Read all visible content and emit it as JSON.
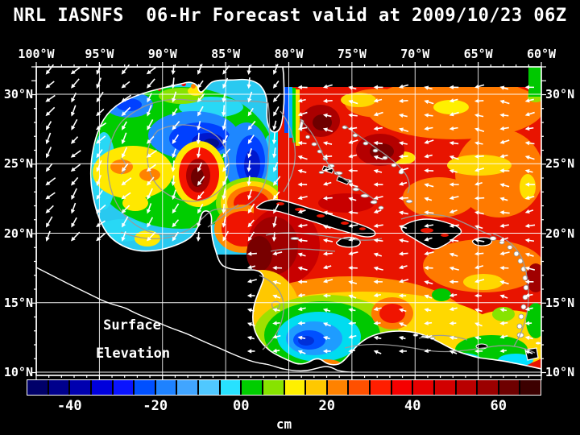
{
  "title": "NRL IASNFS  06-Hr Forecast valid at 2009/10/23 06Z",
  "variable_label": {
    "line1": "Surface",
    "line2": "Elevation"
  },
  "axes": {
    "lon_labels": [
      "100°W",
      "95°W",
      "90°W",
      "85°W",
      "80°W",
      "75°W",
      "70°W",
      "65°W",
      "60°W"
    ],
    "lat_labels": [
      "30°N",
      "25°N",
      "20°N",
      "15°N",
      "10°N"
    ]
  },
  "colorbar": {
    "unit": "cm",
    "tick_labels": [
      "-40",
      "-20",
      "00",
      "20",
      "40",
      "60"
    ],
    "min_cm": -50,
    "max_cm": 70,
    "cell_cm": 5,
    "colors": [
      "#000069",
      "#00008c",
      "#0000af",
      "#0000dc",
      "#0a14ff",
      "#0050ff",
      "#1e82ff",
      "#41a5ff",
      "#50c8ff",
      "#28e1ff",
      "#00cd00",
      "#87e300",
      "#fff000",
      "#ffc800",
      "#ff8200",
      "#ff5000",
      "#ff1e00",
      "#f50000",
      "#e60000",
      "#d20000",
      "#b90000",
      "#9b0000",
      "#6e0000",
      "#3c0000"
    ]
  },
  "wind_field": {
    "vector_color": "#ffffff",
    "regions": [
      {
        "name": "domain-void-northeast",
        "x": [
          352,
          658
        ],
        "y": [
          83,
          108
        ],
        "skip": true
      },
      {
        "name": "pacific-land",
        "x": [
          45,
          298
        ],
        "y": [
          300,
          466
        ],
        "skip": true
      },
      {
        "name": "south-edge-land",
        "x": [
          45,
          672
        ],
        "y": [
          443,
          466
        ],
        "skip": true
      },
      {
        "name": "west-gulf-southwestward",
        "x": [
          45,
          200
        ],
        "y": [
          83,
          300
        ],
        "angle": 128,
        "len": 13
      },
      {
        "name": "central-gulf-southward",
        "x": [
          200,
          352
        ],
        "y": [
          83,
          300
        ],
        "angle": 112,
        "len": 12
      },
      {
        "name": "south-caribbean-weak-westward",
        "x": [
          298,
          672
        ],
        "y": [
          352,
          443
        ],
        "angle": 184,
        "len": 8
      },
      {
        "name": "trade-winds-westward",
        "x": [
          45,
          672
        ],
        "y": [
          83,
          466
        ],
        "angle": 180,
        "len": 10
      }
    ]
  },
  "chart_data": {
    "type": "heatmap",
    "title": "NRL IASNFS 06-Hr Forecast valid at 2009/10/23 06Z",
    "field": "Surface Elevation",
    "unit": "cm",
    "x_axis": {
      "label": "longitude",
      "ticks": [
        "100°W",
        "95°W",
        "90°W",
        "85°W",
        "80°W",
        "75°W",
        "70°W",
        "65°W",
        "60°W"
      ]
    },
    "y_axis": {
      "label": "latitude",
      "ticks": [
        "30°N",
        "25°N",
        "20°N",
        "15°N",
        "10°N"
      ]
    },
    "color_scale": {
      "min": -50,
      "max": 70,
      "step_cm": 5,
      "tick_labels": [
        "-40",
        "-20",
        "00",
        "20",
        "40",
        "60"
      ]
    },
    "overlays": [
      "coastlines",
      "gray bathymetry contours",
      "white wind vectors",
      "5-degree graticule"
    ]
  }
}
